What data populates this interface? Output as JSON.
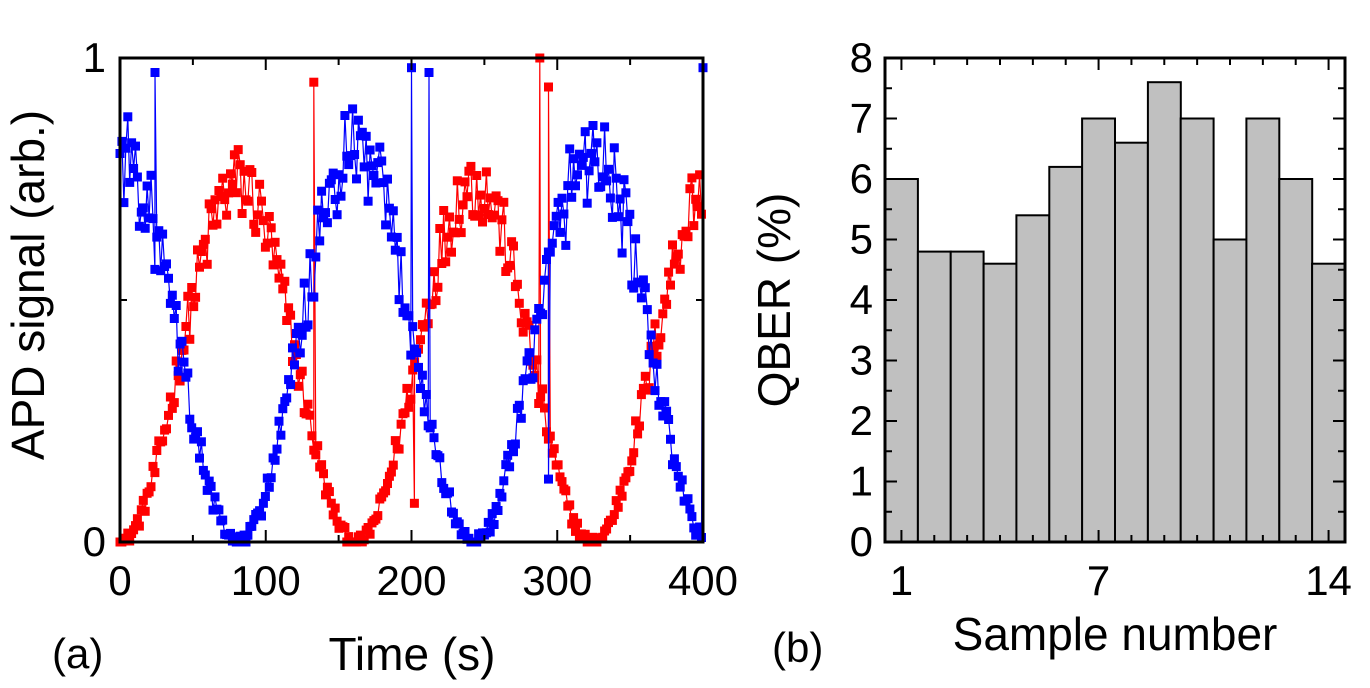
{
  "chart_data": [
    {
      "type": "scatter",
      "panel_label": "(a)",
      "xlabel": "Time (s)",
      "ylabel": "APD signal (arb.)",
      "xlim": [
        0,
        400
      ],
      "ylim": [
        0,
        1
      ],
      "x_ticks": [
        0,
        100,
        200,
        300,
        400
      ],
      "x_tick_labels": [
        "0",
        "100",
        "200",
        "300",
        "400"
      ],
      "y_tick_labels": [
        "0",
        "1"
      ],
      "y_ticks": [
        0,
        1
      ],
      "series": [
        {
          "name": "red",
          "color": "#ff0000",
          "marker": "square",
          "connected": true,
          "model": {
            "mean": 0.37,
            "amplitude": 0.37,
            "period": 162,
            "phase_at_zero": 3.1416,
            "noise": 0.06,
            "sample_step": 1.33
          },
          "outlier_peaks": [
            [
              133,
              0.95
            ],
            [
              202,
              0.08
            ],
            [
              288,
              1.0
            ],
            [
              294,
              0.94
            ]
          ]
        },
        {
          "name": "blue",
          "color": "#0000ff",
          "marker": "square",
          "connected": true,
          "model": {
            "mean": 0.4,
            "amplitude": 0.4,
            "period": 162,
            "phase_at_zero": 0.0,
            "noise": 0.07,
            "sample_step": 1.33
          },
          "outlier_peaks": [
            [
              24,
              0.97
            ],
            [
              200,
              0.98
            ],
            [
              212,
              0.97
            ],
            [
              294,
              0.13
            ],
            [
              400,
              0.98
            ]
          ]
        }
      ]
    },
    {
      "type": "bar",
      "panel_label": "(b)",
      "xlabel": "Sample number",
      "ylabel": "QBER (%)",
      "categories": [
        1,
        2,
        3,
        4,
        5,
        6,
        7,
        8,
        9,
        10,
        11,
        12,
        13,
        14
      ],
      "values": [
        6.0,
        4.8,
        4.8,
        4.6,
        5.4,
        6.2,
        7.0,
        6.6,
        7.6,
        7.0,
        5.0,
        7.0,
        6.0,
        4.6
      ],
      "bar_color": "#c0c0c0",
      "ylim": [
        0,
        8
      ],
      "y_ticks": [
        0,
        1,
        2,
        3,
        4,
        5,
        6,
        7,
        8
      ],
      "y_tick_labels": [
        "0",
        "1",
        "2",
        "3",
        "4",
        "5",
        "6",
        "7",
        "8"
      ],
      "x_tick_labels": [
        "1",
        "7",
        "14"
      ],
      "x_ticks": [
        1,
        7,
        14
      ]
    }
  ]
}
